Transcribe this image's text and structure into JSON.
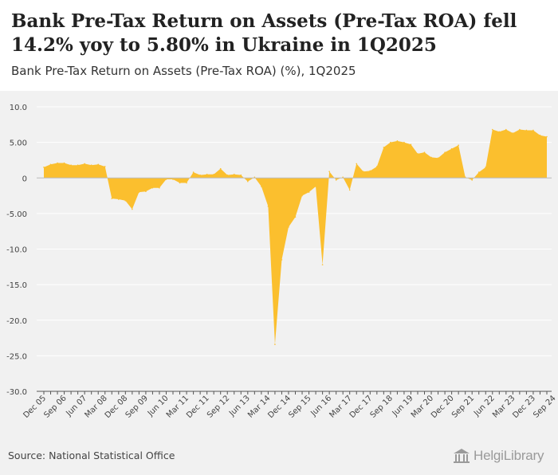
{
  "header": {
    "title": "Bank Pre-Tax Return on Assets (Pre-Tax ROA) fell 14.2% yoy to 5.80% in Ukraine in 1Q2025",
    "subtitle": "Bank Pre-Tax Return on Assets (Pre-Tax ROA) (%), 1Q2025"
  },
  "footer": {
    "source": "Source: National Statistical Office",
    "brand": "HelgiLibrary"
  },
  "icons": {
    "brand": "library-building-icon"
  },
  "colors": {
    "area": "#fbbf2e",
    "axis": "#555555",
    "grid": "#ffffff",
    "panel": "#f1f1f1"
  },
  "chart_data": {
    "type": "area",
    "title": "Bank Pre-Tax Return on Assets (Pre-Tax ROA) (%), 1Q2025",
    "xlabel": "",
    "ylabel": "",
    "ylim": [
      -30,
      10
    ],
    "yticks": [
      10,
      5,
      0,
      -5,
      -10,
      -15,
      -20,
      -25,
      -30
    ],
    "ytick_labels": [
      "10.0",
      "5.00",
      "0",
      "-5.00",
      "-10.0",
      "-15.0",
      "-20.0",
      "-25.0",
      "-30.0"
    ],
    "x_tick_labels": [
      {
        "label": "Dec 05",
        "index": 0
      },
      {
        "label": "Sep 06",
        "index": 3
      },
      {
        "label": "Jun 07",
        "index": 6
      },
      {
        "label": "Mar 08",
        "index": 9
      },
      {
        "label": "Dec 08",
        "index": 12
      },
      {
        "label": "Sep 09",
        "index": 15
      },
      {
        "label": "Jun 10",
        "index": 18
      },
      {
        "label": "Mar 11",
        "index": 21
      },
      {
        "label": "Dec 11",
        "index": 24
      },
      {
        "label": "Sep 12",
        "index": 27
      },
      {
        "label": "Jun 13",
        "index": 30
      },
      {
        "label": "Mar 14",
        "index": 33
      },
      {
        "label": "Dec 14",
        "index": 36
      },
      {
        "label": "Sep 15",
        "index": 39
      },
      {
        "label": "Jun 16",
        "index": 42
      },
      {
        "label": "Mar 17",
        "index": 45
      },
      {
        "label": "Dec 17",
        "index": 48
      },
      {
        "label": "Sep 18",
        "index": 51
      },
      {
        "label": "Jun 19",
        "index": 54
      },
      {
        "label": "Mar 20",
        "index": 57
      },
      {
        "label": "Dec 20",
        "index": 60
      },
      {
        "label": "Sep 21",
        "index": 63
      },
      {
        "label": "Jun 22",
        "index": 66
      },
      {
        "label": "Mar 23",
        "index": 69
      },
      {
        "label": "Dec 23",
        "index": 72
      },
      {
        "label": "Sep 24",
        "index": 75
      }
    ],
    "series": [
      {
        "name": "Bank Pre-Tax ROA (%)",
        "values": [
          1.5,
          1.9,
          2.1,
          2.1,
          1.8,
          1.8,
          2.0,
          1.8,
          1.9,
          1.6,
          -2.9,
          -3.0,
          -3.2,
          -4.4,
          -2.0,
          -1.9,
          -1.4,
          -1.4,
          -0.2,
          -0.2,
          -0.7,
          -0.7,
          0.8,
          0.4,
          0.5,
          0.5,
          1.3,
          0.4,
          0.5,
          0.4,
          -0.5,
          0.1,
          -1.2,
          -4.0,
          -23.4,
          -11.5,
          -6.9,
          -5.5,
          -2.5,
          -2.0,
          -1.2,
          -12.2,
          0.9,
          -0.3,
          0.1,
          -1.7,
          2.0,
          0.9,
          1.0,
          1.6,
          4.3,
          5.0,
          5.2,
          5.0,
          4.7,
          3.4,
          3.6,
          2.9,
          2.8,
          3.6,
          4.1,
          4.6,
          0.1,
          -0.3,
          0.8,
          1.5,
          6.8,
          6.5,
          6.8,
          6.3,
          6.8,
          6.7,
          6.7,
          6.0,
          5.8
        ]
      }
    ]
  }
}
